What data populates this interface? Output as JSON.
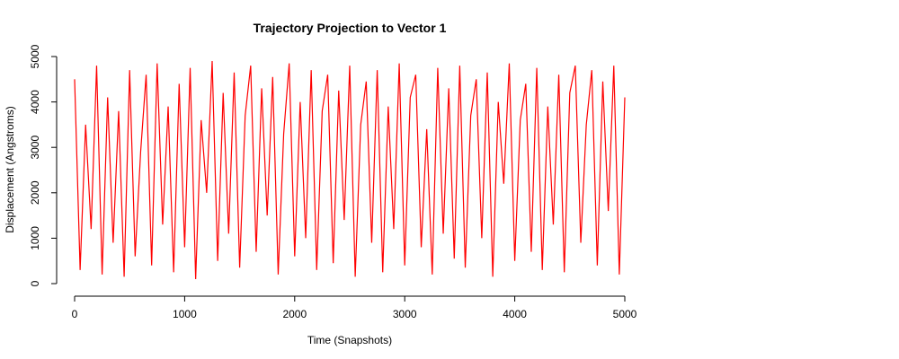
{
  "chart_data": {
    "type": "line",
    "title": "Trajectory Projection to Vector 1",
    "x_label": "Time (Snapshots)",
    "y_label": "Displacement (Angstroms)",
    "x": [
      0,
      50,
      100,
      150,
      200,
      250,
      300,
      350,
      400,
      450,
      500,
      550,
      600,
      650,
      700,
      750,
      800,
      850,
      900,
      950,
      1000,
      1050,
      1100,
      1150,
      1200,
      1250,
      1300,
      1350,
      1400,
      1450,
      1500,
      1550,
      1600,
      1650,
      1700,
      1750,
      1800,
      1850,
      1900,
      1950,
      2000,
      2050,
      2100,
      2150,
      2200,
      2250,
      2300,
      2350,
      2400,
      2450,
      2500,
      2550,
      2600,
      2650,
      2700,
      2750,
      2800,
      2850,
      2900,
      2950,
      3000,
      3050,
      3100,
      3150,
      3200,
      3250,
      3300,
      3350,
      3400,
      3450,
      3500,
      3550,
      3600,
      3650,
      3700,
      3750,
      3800,
      3850,
      3900,
      3950,
      4000,
      4050,
      4100,
      4150,
      4200,
      4250,
      4300,
      4350,
      4400,
      4450,
      4500,
      4550,
      4600,
      4650,
      4700,
      4750,
      4800,
      4850,
      4900,
      4950,
      5000
    ],
    "series": [
      {
        "color": "#ff0000",
        "values": [
          4500,
          300,
          3500,
          1200,
          4800,
          200,
          4100,
          900,
          3800,
          150,
          4700,
          600,
          2900,
          4600,
          400,
          4850,
          1300,
          3900,
          250,
          4400,
          800,
          4750,
          100,
          3600,
          2000,
          4900,
          500,
          4200,
          1100,
          4650,
          350,
          3700,
          4800,
          700,
          4300,
          1500,
          4550,
          200,
          3300,
          4850,
          600,
          4000,
          1000,
          4700,
          300,
          3800,
          4600,
          450,
          4250,
          1400,
          4800,
          150,
          3500,
          4450,
          900,
          4700,
          250,
          3900,
          1200,
          4850,
          400,
          4100,
          4600,
          800,
          3400,
          200,
          4750,
          1100,
          4300,
          550,
          4800,
          350,
          3700,
          4500,
          1000,
          4650,
          150,
          4000,
          2200,
          4850,
          500,
          3600,
          4400,
          700,
          4750,
          300,
          3900,
          1300,
          4600,
          250,
          4200,
          4800,
          900,
          3500,
          4700,
          400,
          4450,
          1600,
          4800,
          200,
          4100
        ]
      }
    ],
    "xlim": [
      0,
      5000
    ],
    "ylim": [
      0,
      5000
    ],
    "xticks": [
      0,
      1000,
      2000,
      3000,
      4000,
      5000
    ],
    "yticks": [
      0,
      1000,
      2000,
      3000,
      4000,
      5000
    ]
  }
}
